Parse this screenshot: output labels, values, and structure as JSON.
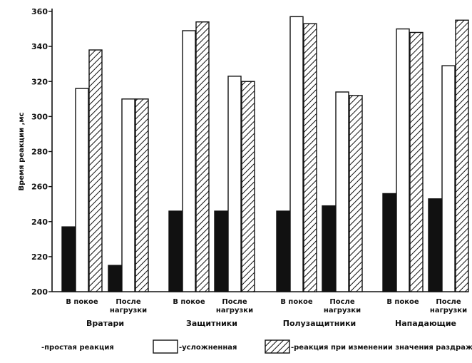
{
  "chart_data": {
    "type": "bar",
    "ylabel": "Время реакции ,мс",
    "ylim": [
      200,
      360
    ],
    "yticks": [
      200,
      220,
      240,
      260,
      280,
      300,
      320,
      340,
      360
    ],
    "groups": [
      {
        "name": "Вратари",
        "conditions": [
          [
            "В покое"
          ],
          [
            "После",
            "нагрузки"
          ]
        ]
      },
      {
        "name": "Защитники",
        "conditions": [
          [
            "В покое"
          ],
          [
            "После",
            "нагрузки"
          ]
        ]
      },
      {
        "name": "Полузащитники",
        "conditions": [
          [
            "В покое"
          ],
          [
            "После",
            "нагрузки"
          ]
        ]
      },
      {
        "name": "Нападающие",
        "conditions": [
          [
            "В покое"
          ],
          [
            "После",
            "нагрузки"
          ]
        ]
      }
    ],
    "categories": [
      "Вратари: В покое",
      "Вратари: После нагрузки",
      "Защитники: В покое",
      "Защитники: После нагрузки",
      "Полузащитники: В покое",
      "Полузащитники: После нагрузки",
      "Нападающие: В покое",
      "Нападающие: После нагрузки"
    ],
    "series": [
      {
        "name": "-простая реакция",
        "style": "solid",
        "color": "#111111",
        "values": [
          237,
          215,
          246,
          246,
          246,
          249,
          256,
          253
        ]
      },
      {
        "name": "-усложненная",
        "style": "outline",
        "color": "#ffffff",
        "values": [
          316,
          310,
          349,
          323,
          357,
          314,
          350,
          329
        ]
      },
      {
        "name": "-реакция при изменении значения раздражите",
        "style": "hatched",
        "color": "#111111",
        "values": [
          338,
          310,
          354,
          320,
          353,
          312,
          348,
          355
        ]
      }
    ],
    "legend_position": "bottom",
    "grid": false
  }
}
